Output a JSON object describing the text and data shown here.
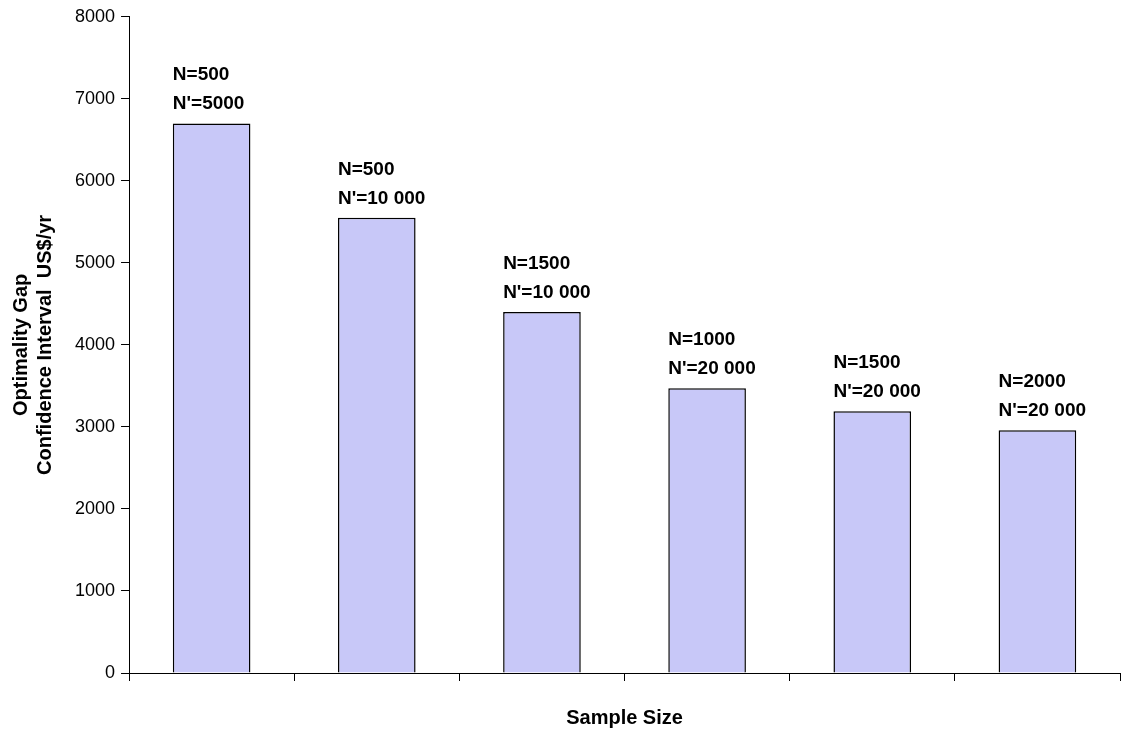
{
  "chart_data": {
    "type": "bar",
    "xlabel": "Sample Size",
    "ylabel": "Optimality Gap\nConfidence Interval  US$/yr",
    "categories": [
      "N=500\nN'=5000",
      "N=500\nN'=10 000",
      "N=1500\nN'=10 000",
      "N=1000\nN'=20 000",
      "N=1500\nN'=20 000",
      "N=2000\nN'=20 000"
    ],
    "values": [
      6700,
      5550,
      4400,
      3470,
      3190,
      2960
    ],
    "color": "#c8c8f8",
    "ylim": [
      0,
      8000
    ],
    "yticks": [
      0,
      1000,
      2000,
      3000,
      4000,
      5000,
      6000,
      7000,
      8000
    ],
    "grid": false,
    "legend": false
  }
}
